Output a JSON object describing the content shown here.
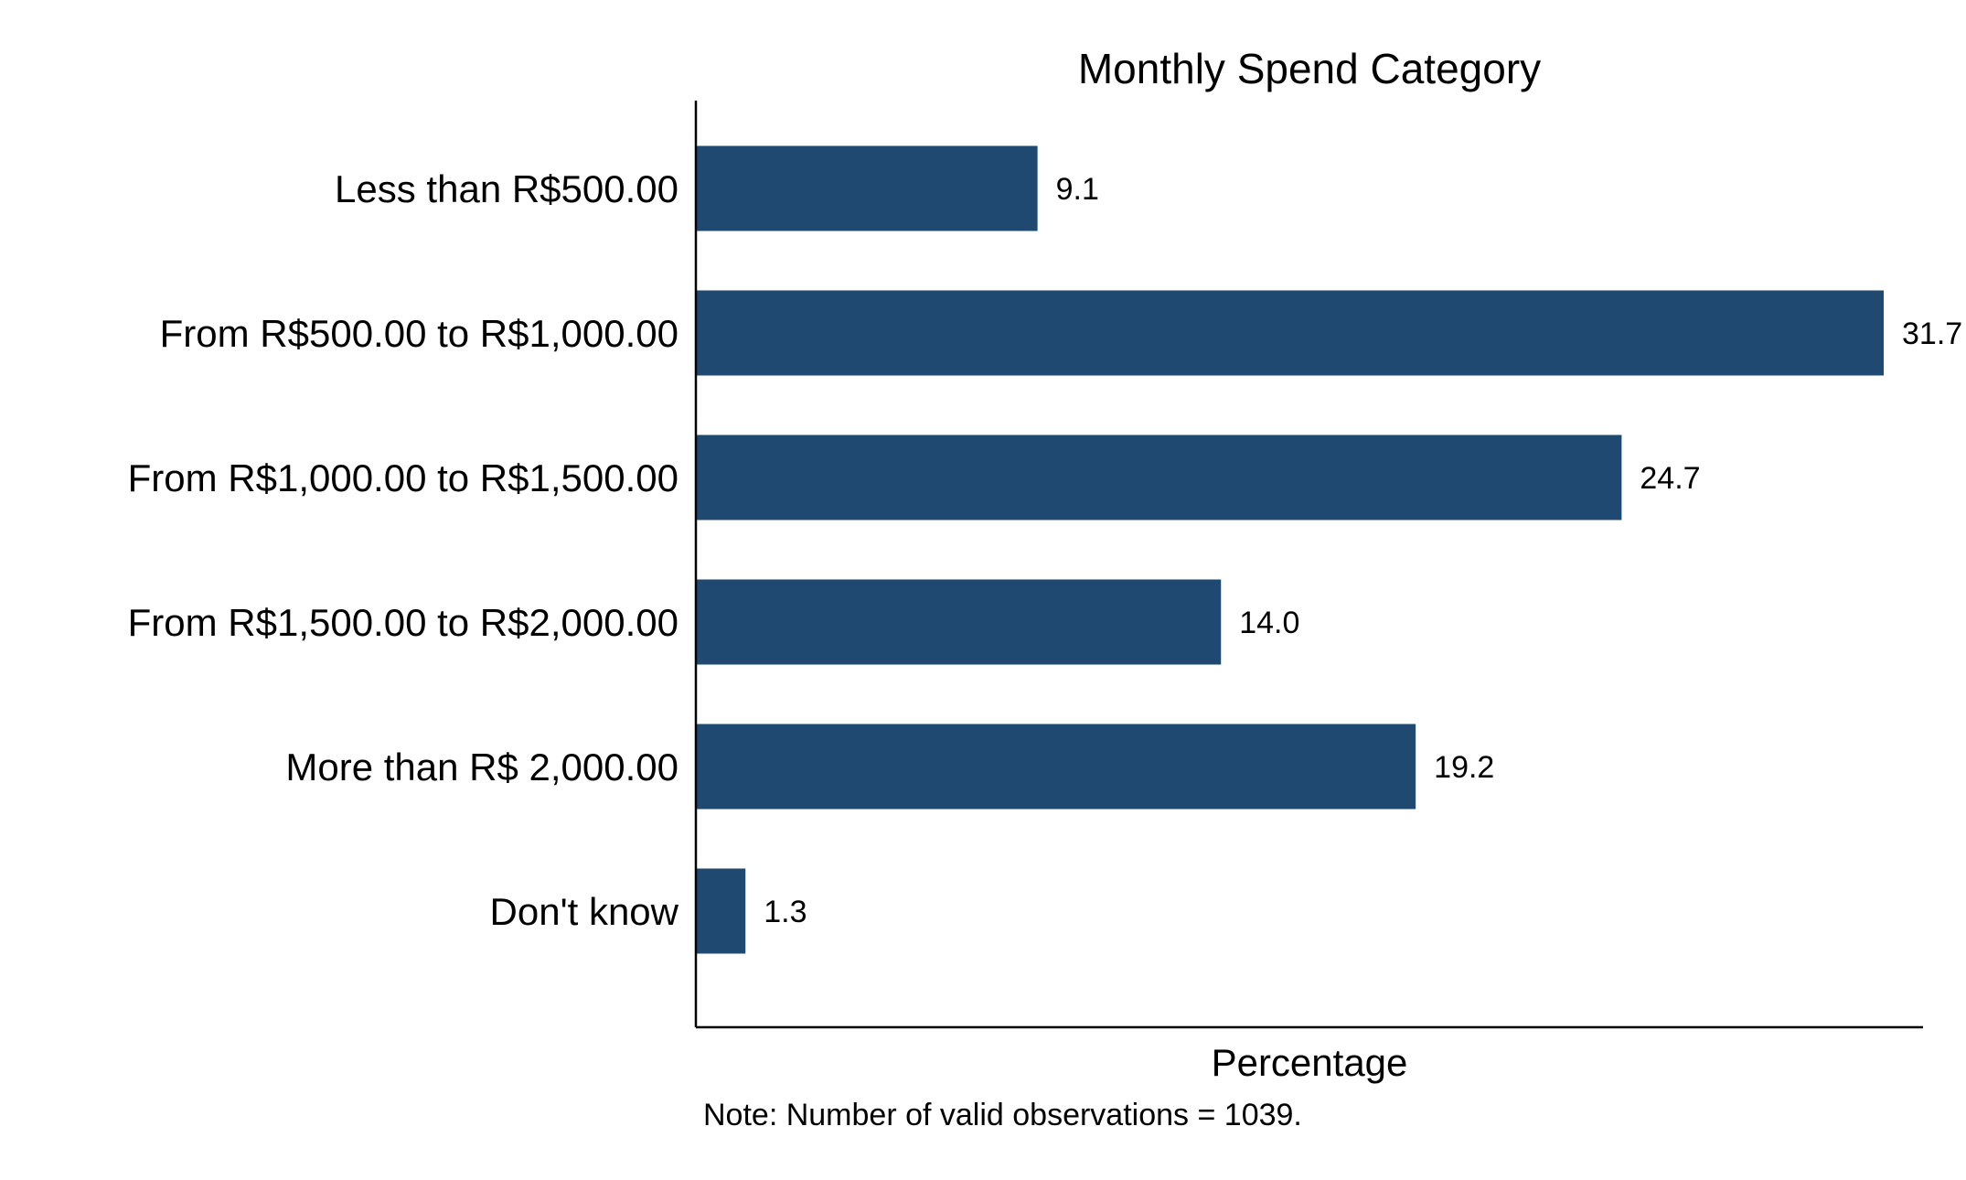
{
  "chart_data": {
    "type": "bar",
    "orientation": "horizontal",
    "title": "Monthly Spend Category",
    "categories": [
      "Less than R$500.00",
      "From R$500.00 to R$1,000.00",
      "From R$1,000.00 to R$1,500.00",
      "From R$1,500.00 to R$2,000.00",
      "More than R$ 2,000.00",
      "Don't know"
    ],
    "values": [
      9.1,
      31.7,
      24.7,
      14.0,
      19.2,
      1.3
    ],
    "value_labels": [
      "9.1",
      "31.7",
      "24.7",
      "14.0",
      "19.2",
      "1.3"
    ],
    "xlabel": "Percentage",
    "ylabel": "",
    "xlim": [
      0,
      33
    ],
    "grid": false,
    "legend": "none",
    "bar_color": "#1f4971",
    "note": "Note: Number of valid observations = 1039."
  }
}
